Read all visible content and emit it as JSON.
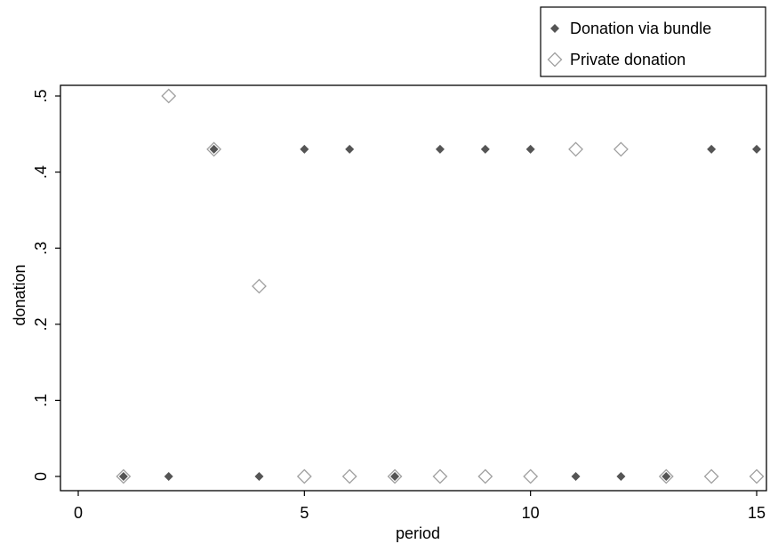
{
  "chart_data": {
    "type": "scatter",
    "xlabel": "period",
    "ylabel": "donation",
    "xlim": [
      0,
      15
    ],
    "ylim": [
      0,
      0.5
    ],
    "x_ticks": [
      0,
      5,
      10,
      15
    ],
    "x_tick_labels": [
      "0",
      "5",
      "10",
      "15"
    ],
    "y_ticks": [
      0,
      0.1,
      0.2,
      0.3,
      0.4,
      0.5
    ],
    "y_tick_labels": [
      "0",
      ".1",
      ".2",
      ".3",
      ".4",
      ".5"
    ],
    "grid": false,
    "legend_position": "top-right",
    "series": [
      {
        "name": "Donation via bundle",
        "marker": "filled-diamond",
        "color": "#555555",
        "x": [
          1,
          2,
          3,
          4,
          5,
          6,
          7,
          8,
          9,
          10,
          11,
          12,
          13,
          14,
          15
        ],
        "y": [
          0,
          0,
          0.43,
          0,
          0.43,
          0.43,
          0,
          0.43,
          0.43,
          0.43,
          0,
          0,
          0,
          0.43,
          0.43
        ]
      },
      {
        "name": "Private donation",
        "marker": "hollow-diamond",
        "color": "#a0a0a0",
        "x": [
          1,
          2,
          3,
          4,
          5,
          6,
          7,
          8,
          9,
          10,
          11,
          12,
          13,
          14,
          15
        ],
        "y": [
          0,
          0.5,
          0.43,
          0.25,
          0,
          0,
          0,
          0,
          0,
          0,
          0.43,
          0.43,
          0,
          0,
          0
        ]
      }
    ]
  }
}
